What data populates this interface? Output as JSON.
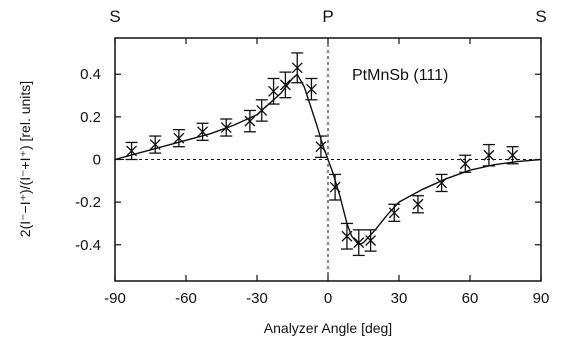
{
  "chart_data": {
    "type": "scatter",
    "title": "PtMnSb (111)",
    "xlabel": "Analyzer Angle [deg]",
    "ylabel": "2(I⁻−I⁺)/(I⁻+I⁺)  [rel. units]",
    "xlim": [
      -90,
      90
    ],
    "ylim": [
      -0.57,
      0.57
    ],
    "xticks": [
      -90,
      -60,
      -30,
      0,
      30,
      60,
      90
    ],
    "xtick_labels": [
      "-90",
      "-60",
      "-30",
      "0",
      "30",
      "60",
      "90"
    ],
    "yticks": [
      0.4,
      0.2,
      0,
      -0.2,
      -0.4
    ],
    "ytick_labels": [
      "0.4",
      "0.2",
      "0",
      "-0.2",
      "-0.4"
    ],
    "top_labels": [
      {
        "x": -90,
        "text": "S"
      },
      {
        "x": 0,
        "text": "P"
      },
      {
        "x": 90,
        "text": "S"
      }
    ],
    "zero_line": "dashed",
    "vertical_line_at_x": 0,
    "markers": "x-with-error-bars",
    "series": [
      {
        "points": [
          {
            "x": -83,
            "y": 0.04,
            "err": 0.04
          },
          {
            "x": -73,
            "y": 0.07,
            "err": 0.04
          },
          {
            "x": -63,
            "y": 0.1,
            "err": 0.04
          },
          {
            "x": -53,
            "y": 0.13,
            "err": 0.04
          },
          {
            "x": -43,
            "y": 0.15,
            "err": 0.04
          },
          {
            "x": -33,
            "y": 0.18,
            "err": 0.05
          },
          {
            "x": -28,
            "y": 0.23,
            "err": 0.05
          },
          {
            "x": -23,
            "y": 0.32,
            "err": 0.06
          },
          {
            "x": -18,
            "y": 0.35,
            "err": 0.06
          },
          {
            "x": -13,
            "y": 0.43,
            "err": 0.07
          },
          {
            "x": -7,
            "y": 0.33,
            "err": 0.05
          },
          {
            "x": -3,
            "y": 0.06,
            "err": 0.05
          },
          {
            "x": 3,
            "y": -0.13,
            "err": 0.06
          },
          {
            "x": 8,
            "y": -0.36,
            "err": 0.06
          },
          {
            "x": 13,
            "y": -0.39,
            "err": 0.06
          },
          {
            "x": 18,
            "y": -0.38,
            "err": 0.05
          },
          {
            "x": 28,
            "y": -0.25,
            "err": 0.04
          },
          {
            "x": 38,
            "y": -0.21,
            "err": 0.04
          },
          {
            "x": 48,
            "y": -0.11,
            "err": 0.04
          },
          {
            "x": 58,
            "y": -0.02,
            "err": 0.04
          },
          {
            "x": 68,
            "y": 0.02,
            "err": 0.05
          },
          {
            "x": 78,
            "y": 0.02,
            "err": 0.04
          }
        ]
      }
    ],
    "fit_curve": {
      "x": [
        -90,
        -80,
        -70,
        -60,
        -50,
        -40,
        -30,
        -25,
        -20,
        -15,
        -13,
        -10,
        -5,
        -2,
        0,
        2,
        5,
        8,
        10,
        13,
        15,
        20,
        25,
        30,
        40,
        50,
        60,
        70,
        80,
        90
      ],
      "y": [
        0,
        0.03,
        0.06,
        0.09,
        0.12,
        0.16,
        0.21,
        0.26,
        0.31,
        0.38,
        0.4,
        0.34,
        0.17,
        0.06,
        0,
        -0.06,
        -0.17,
        -0.3,
        -0.36,
        -0.4,
        -0.39,
        -0.33,
        -0.26,
        -0.2,
        -0.14,
        -0.09,
        -0.05,
        -0.025,
        -0.01,
        0
      ]
    }
  }
}
